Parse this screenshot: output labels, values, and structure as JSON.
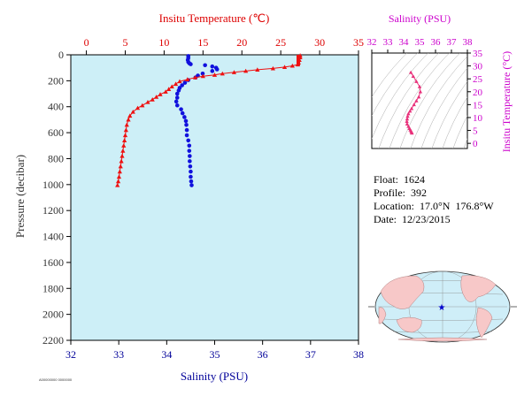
{
  "main": {
    "top_axis_label": "Insitu Temperature (℃)",
    "bottom_axis_label": "Salinity (PSU)",
    "left_axis_label": "Pressure (decibar)"
  },
  "inset": {
    "top_axis_label": "Salinity (PSU)",
    "right_axis_label": "Insitu Temperature (°C)"
  },
  "info": {
    "float_label": "Float:",
    "float_value": "1624",
    "profile_label": "Profile:",
    "profile_value": "392",
    "location_label": "Location:",
    "location_value": "17.0°N  176.8°W",
    "date_label": "Date:",
    "date_value": "12/23/2015"
  },
  "footer_note": "A00000000 0000000",
  "colors": {
    "plot_bg": "#cdeff7",
    "temperature": "#ee1111",
    "salinity": "#1111dd",
    "ts_curve": "#e8307a",
    "inset_accent": "#cc00cc",
    "land": "#f7c8c8",
    "ocean": "#cfeef8"
  },
  "chart_data": [
    {
      "type": "line",
      "x_axis_top": {
        "label": "Insitu Temperature (℃)",
        "range": [
          -2,
          35
        ],
        "ticks": [
          0,
          5,
          10,
          15,
          20,
          25,
          30,
          35
        ]
      },
      "x_axis_bottom": {
        "label": "Salinity (PSU)",
        "range": [
          32,
          38
        ],
        "ticks": [
          32,
          33,
          34,
          35,
          36,
          37,
          38
        ]
      },
      "y_axis": {
        "label": "Pressure (decibar)",
        "range": [
          0,
          2200
        ],
        "inverted": true,
        "ticks": [
          0,
          200,
          400,
          600,
          800,
          1000,
          1200,
          1400,
          1600,
          1800,
          2000,
          2200
        ]
      },
      "grid": false,
      "series": [
        {
          "name": "Insitu Temperature",
          "axis": "top",
          "marker": "triangle",
          "points": [
            [
              27.5,
              5
            ],
            [
              27.5,
              20
            ],
            [
              27.4,
              40
            ],
            [
              27.3,
              60
            ],
            [
              27.2,
              75
            ],
            [
              26.5,
              85
            ],
            [
              25.5,
              95
            ],
            [
              24.0,
              105
            ],
            [
              22.0,
              115
            ],
            [
              20.5,
              125
            ],
            [
              19.0,
              135
            ],
            [
              17.5,
              145
            ],
            [
              16.5,
              155
            ],
            [
              15.0,
              165
            ],
            [
              14.0,
              175
            ],
            [
              13.0,
              190
            ],
            [
              12.0,
              205
            ],
            [
              11.5,
              225
            ],
            [
              11.0,
              245
            ],
            [
              10.6,
              265
            ],
            [
              10.2,
              285
            ],
            [
              9.5,
              305
            ],
            [
              9.0,
              325
            ],
            [
              8.5,
              345
            ],
            [
              7.9,
              365
            ],
            [
              7.2,
              390
            ],
            [
              6.6,
              410
            ],
            [
              6.0,
              440
            ],
            [
              5.6,
              470
            ],
            [
              5.4,
              500
            ],
            [
              5.2,
              540
            ],
            [
              5.1,
              580
            ],
            [
              5.0,
              620
            ],
            [
              4.9,
              660
            ],
            [
              4.8,
              700
            ],
            [
              4.7,
              740
            ],
            [
              4.6,
              780
            ],
            [
              4.5,
              820
            ],
            [
              4.4,
              860
            ],
            [
              4.3,
              900
            ],
            [
              4.2,
              940
            ],
            [
              4.1,
              975
            ],
            [
              4.0,
              1005
            ]
          ]
        },
        {
          "name": "Salinity",
          "axis": "bottom",
          "marker": "circle",
          "points": [
            [
              34.45,
              10
            ],
            [
              34.45,
              25
            ],
            [
              34.44,
              40
            ],
            [
              34.45,
              55
            ],
            [
              34.47,
              65
            ],
            [
              34.5,
              72
            ],
            [
              34.8,
              80
            ],
            [
              34.95,
              90
            ],
            [
              35.03,
              100
            ],
            [
              35.05,
              112
            ],
            [
              34.95,
              125
            ],
            [
              34.75,
              145
            ],
            [
              34.65,
              160
            ],
            [
              34.6,
              175
            ],
            [
              34.45,
              195
            ],
            [
              34.38,
              215
            ],
            [
              34.32,
              235
            ],
            [
              34.27,
              255
            ],
            [
              34.25,
              275
            ],
            [
              34.22,
              300
            ],
            [
              34.22,
              330
            ],
            [
              34.2,
              360
            ],
            [
              34.22,
              390
            ],
            [
              34.3,
              420
            ],
            [
              34.33,
              450
            ],
            [
              34.37,
              480
            ],
            [
              34.4,
              510
            ],
            [
              34.41,
              540
            ],
            [
              34.42,
              580
            ],
            [
              34.42,
              620
            ],
            [
              34.45,
              660
            ],
            [
              34.47,
              700
            ],
            [
              34.47,
              740
            ],
            [
              34.48,
              780
            ],
            [
              34.48,
              820
            ],
            [
              34.49,
              860
            ],
            [
              34.5,
              900
            ],
            [
              34.5,
              940
            ],
            [
              34.51,
              975
            ],
            [
              34.52,
              1005
            ]
          ]
        }
      ]
    },
    {
      "type": "scatter",
      "title": "Salinity (PSU)",
      "x_axis": {
        "label": "Salinity (PSU)",
        "range": [
          32,
          38
        ],
        "ticks": [
          32,
          33,
          34,
          35,
          36,
          37,
          38
        ]
      },
      "y_axis": {
        "label": "Insitu Temperature (°C)",
        "range": [
          -2,
          35
        ],
        "ticks": [
          0,
          5,
          10,
          15,
          20,
          25,
          30,
          35
        ]
      },
      "grid": false,
      "series": [
        {
          "marker": "triangle",
          "points": [
            [
              34.45,
              27.5
            ],
            [
              34.6,
              26.0
            ],
            [
              34.8,
              24.0
            ],
            [
              35.0,
              22.0
            ],
            [
              35.05,
              20.0
            ],
            [
              34.95,
              18.0
            ],
            [
              34.8,
              16.5
            ],
            [
              34.65,
              15.0
            ],
            [
              34.5,
              13.5
            ],
            [
              34.4,
              12.5
            ],
            [
              34.3,
              11.5
            ],
            [
              34.25,
              10.5
            ],
            [
              34.22,
              9.5
            ],
            [
              34.2,
              8.5
            ],
            [
              34.22,
              7.5
            ],
            [
              34.3,
              6.6
            ],
            [
              34.37,
              5.8
            ],
            [
              34.42,
              5.2
            ],
            [
              34.47,
              4.7
            ],
            [
              34.5,
              4.3
            ],
            [
              34.52,
              4.0
            ]
          ]
        }
      ]
    }
  ]
}
